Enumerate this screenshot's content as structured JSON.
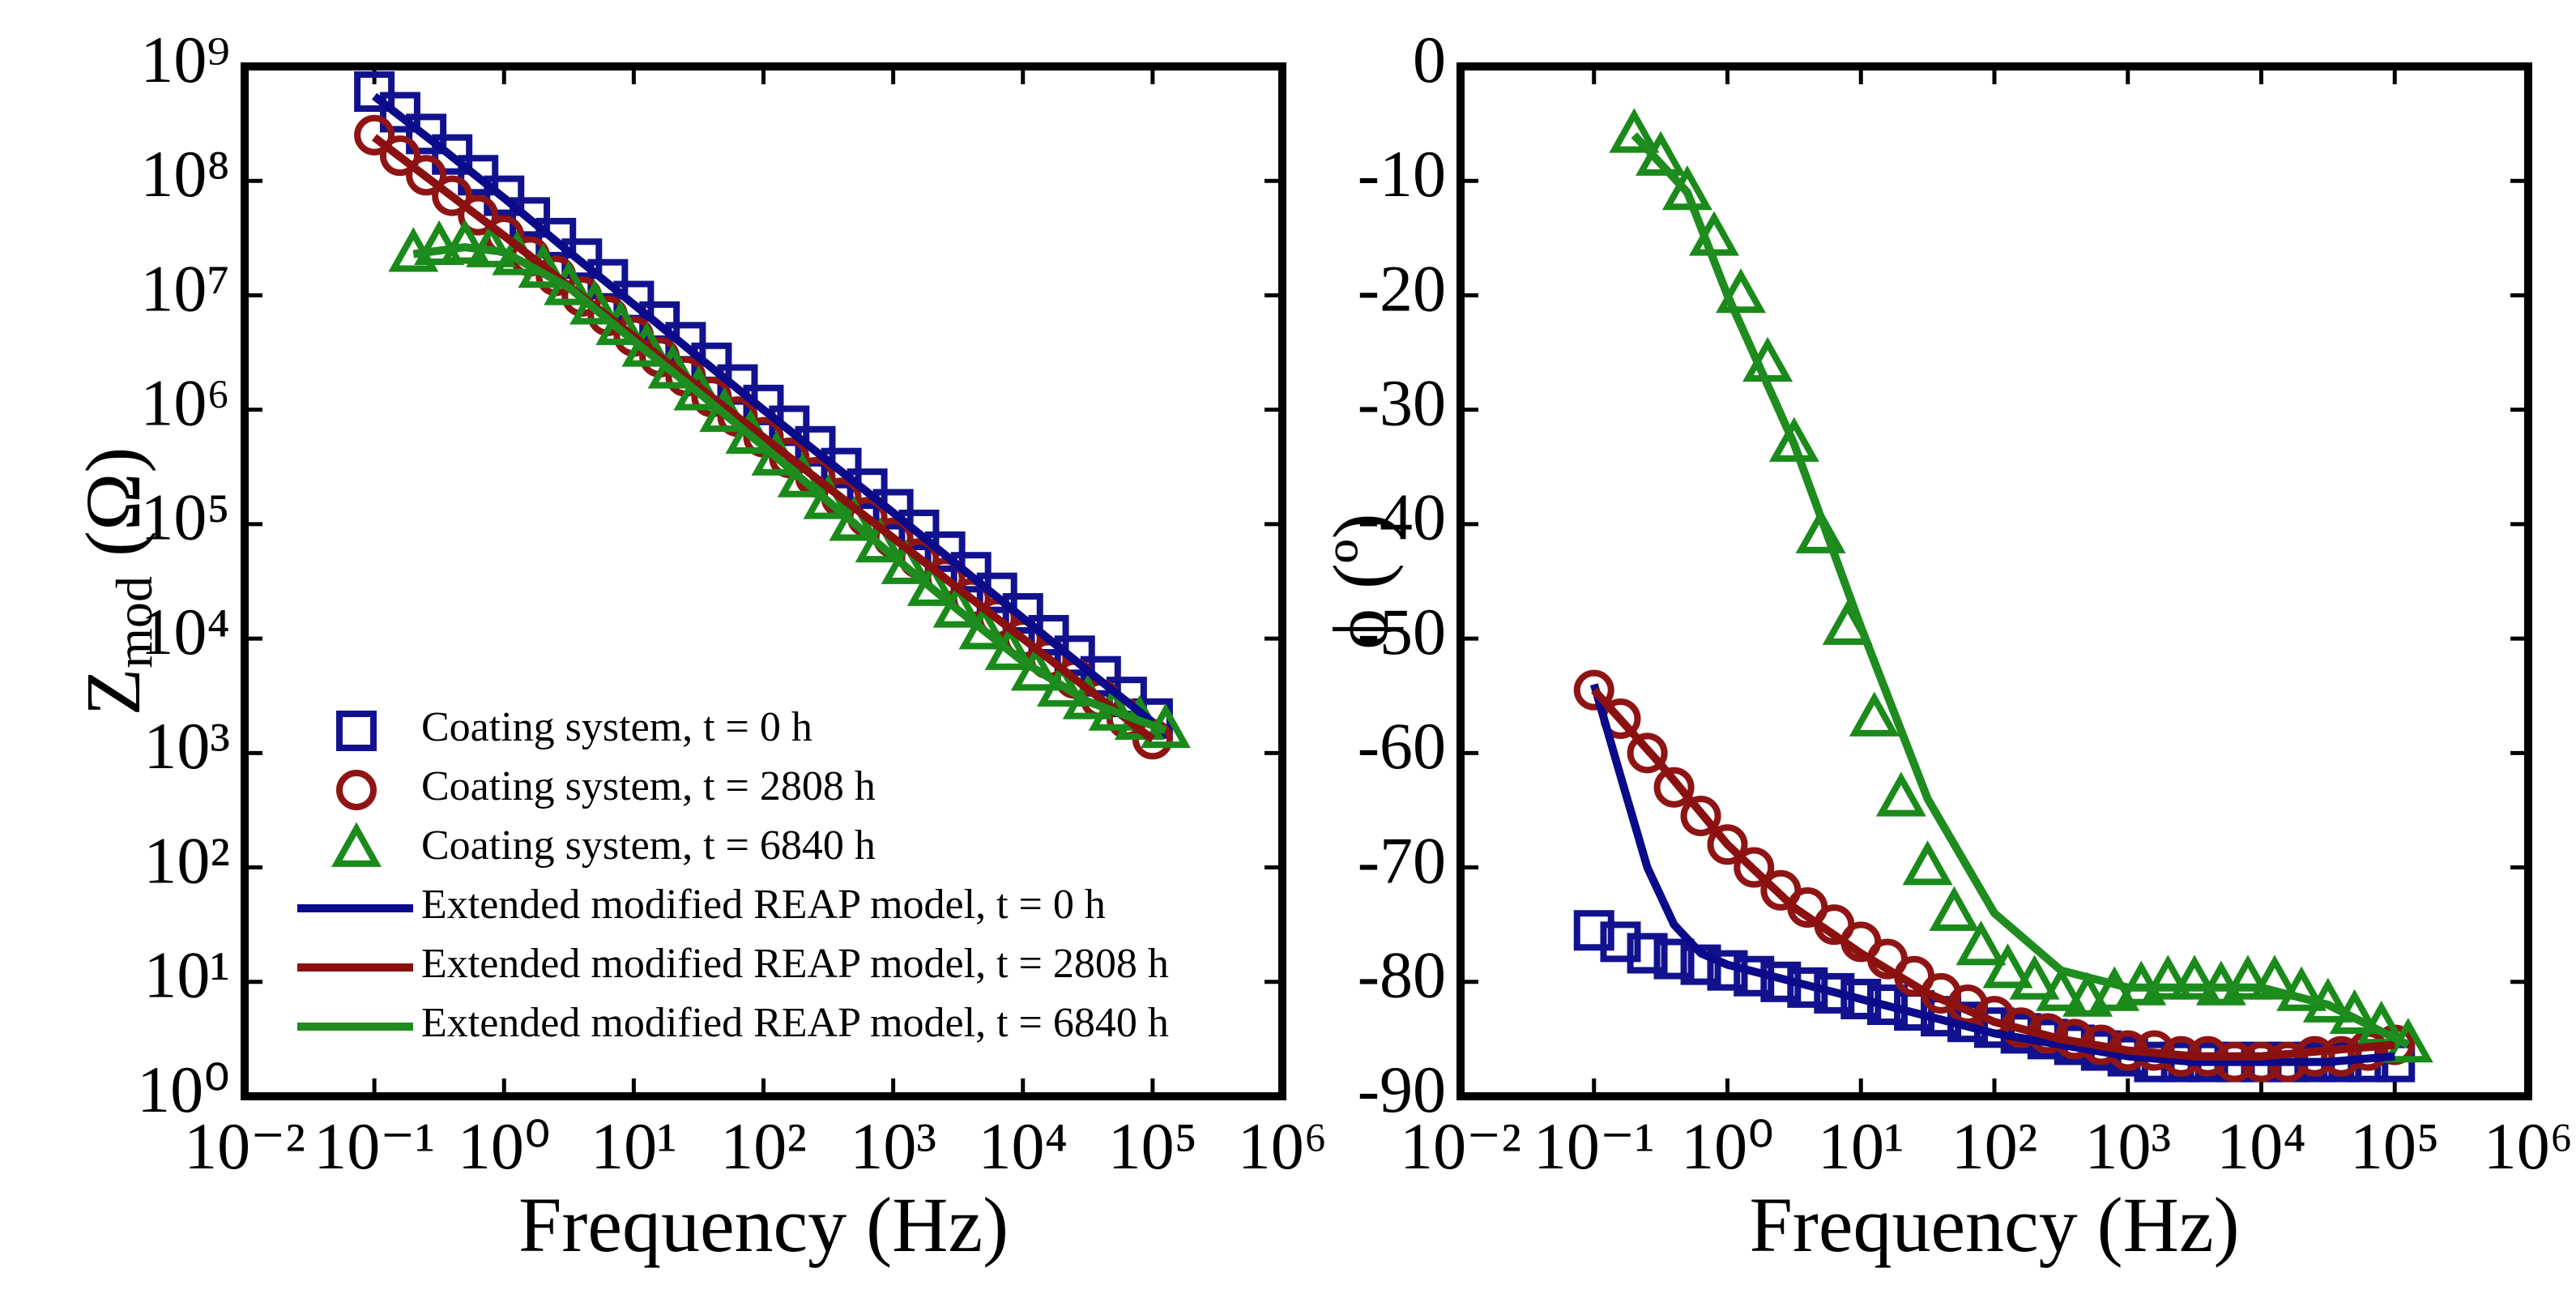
{
  "chart_data": [
    {
      "type": "scatter",
      "xlabel": "Frequency (Hz)",
      "ylabel": [
        "Z",
        "mod",
        " (Ω)"
      ],
      "xscale": "log",
      "yscale": "log",
      "legend": "lower left",
      "xlim": [
        0.01,
        1000000
      ],
      "ylim": [
        1,
        1000000000
      ],
      "xticks": [
        {
          "value": 0.01,
          "label": "10⁻²"
        },
        {
          "value": 0.1,
          "label": "10⁻¹"
        },
        {
          "value": 1,
          "label": "10⁰"
        },
        {
          "value": 10,
          "label": "10¹"
        },
        {
          "value": 100,
          "label": "10²"
        },
        {
          "value": 1000,
          "label": "10³"
        },
        {
          "value": 10000,
          "label": "10⁴"
        },
        {
          "value": 100000,
          "label": "10⁵"
        },
        {
          "value": 1000000,
          "label": "10⁶"
        }
      ],
      "yticks": [
        {
          "value": 1,
          "label": "10⁰"
        },
        {
          "value": 10,
          "label": "10¹"
        },
        {
          "value": 100,
          "label": "10²"
        },
        {
          "value": 1000,
          "label": "10³"
        },
        {
          "value": 10000,
          "label": "10⁴"
        },
        {
          "value": 100000,
          "label": "10⁵"
        },
        {
          "value": 1000000,
          "label": "10⁶"
        },
        {
          "value": 10000000,
          "label": "10⁷"
        },
        {
          "value": 100000000,
          "label": "10⁸"
        },
        {
          "value": 1000000000,
          "label": "10⁹"
        }
      ],
      "series": [
        {
          "name": "Coating system, t = 0 h",
          "color": "#12128f",
          "marker": "square",
          "x": [
            0.1,
            0.158,
            0.251,
            0.398,
            0.631,
            1,
            1.58,
            2.51,
            3.98,
            6.31,
            10,
            15.8,
            25.1,
            39.8,
            63.1,
            100,
            158,
            251,
            398,
            631,
            1000,
            1580,
            2510,
            3980,
            6310,
            10000,
            15800,
            25100,
            39800,
            63100,
            100000
          ],
          "values": [
            603000000.0,
            398000000.0,
            257000000.0,
            170000000.0,
            112000000.0,
            74100000.0,
            47900000.0,
            31600000.0,
            20900000.0,
            13800000.0,
            8910000.0,
            5890000.0,
            3890000.0,
            2570000.0,
            1660000.0,
            1100000.0,
            724000.0,
            479000.0,
            309000.0,
            204000.0,
            135000.0,
            89100.0,
            57500.0,
            38000.0,
            25100.0,
            16600.0,
            10700.0,
            7080.0,
            4680.0,
            3090.0,
            2000.0
          ]
        },
        {
          "name": "Coating system, t = 2808 h",
          "color": "#8f1414",
          "marker": "circle",
          "x": [
            0.1,
            0.158,
            0.251,
            0.398,
            0.631,
            1,
            1.58,
            2.51,
            3.98,
            6.31,
            10,
            15.8,
            25.1,
            39.8,
            63.1,
            100,
            158,
            251,
            398,
            631,
            1000,
            1580,
            2510,
            3980,
            6310,
            10000,
            15800,
            25100,
            39800,
            63100,
            100000
          ],
          "values": [
            251000000.0,
            166000000.0,
            112000000.0,
            74100000.0,
            50100000.0,
            33100000.0,
            21900000.0,
            14800000.0,
            9770000.0,
            6610000.0,
            4370000.0,
            2880000.0,
            1950000.0,
            1290000.0,
            871000.0,
            575000.0,
            380000.0,
            257000.0,
            170000.0,
            115000.0,
            75900.0,
            50100.0,
            33900.0,
            22400.0,
            15100.0,
            10000.0,
            6610.0,
            4470.0,
            2950.0,
            2000.0,
            1320.0
          ]
        },
        {
          "name": "Coating system, t = 6840 h",
          "color": "#1a8a1a",
          "marker": "triangle",
          "x": [
            0.2,
            0.316,
            0.5,
            0.794,
            1.26,
            2,
            3.16,
            5,
            7.94,
            12.6,
            20,
            31.6,
            50,
            79.4,
            126,
            200,
            316,
            500,
            794,
            1260,
            2000,
            3160,
            5000,
            7940,
            12600,
            20000,
            31600,
            50000,
            79400,
            126000
          ],
          "values": [
            22900000.0,
            26300000.0,
            26900000.0,
            25100000.0,
            21400000.0,
            16600000.0,
            11700000.0,
            7940000.0,
            5250000.0,
            3390000.0,
            2190000.0,
            1410000.0,
            912000.0,
            589000.0,
            380000.0,
            245000.0,
            158000.0,
            102000.0,
            66100.0,
            42700.0,
            27500.0,
            17800.0,
            11500.0,
            7590.0,
            5010.0,
            3630.0,
            2820.0,
            2240.0,
            1860.0,
            1580.0
          ]
        },
        {
          "name": "Extended modified REAP model, t = 0 h",
          "color": "#0a0a8a",
          "x": [
            0.1,
            0.316,
            1,
            3.16,
            10,
            31.6,
            100,
            316,
            1000,
            3160,
            10000,
            31600,
            100000
          ],
          "values": [
            550000000.0,
            200000000.0,
            70800000.0,
            24000000.0,
            8320000.0,
            2880000.0,
            1000000.0,
            355000.0,
            126000.0,
            43700.0,
            15100.0,
            5250.0,
            1860.0
          ]
        },
        {
          "name": "Extended modified REAP model, t = 2808 h",
          "color": "#8b1010",
          "x": [
            0.1,
            0.316,
            1,
            3.16,
            10,
            31.6,
            100,
            316,
            1000,
            3160,
            10000,
            31600,
            100000
          ],
          "values": [
            240000000.0,
            89100000.0,
            33100000.0,
            12000000.0,
            4370000.0,
            1580000.0,
            575000.0,
            209000.0,
            75900.0,
            27500.0,
            10000.0,
            3630.0,
            1320.0
          ]
        },
        {
          "name": "Extended modified REAP model, t = 6840 h",
          "color": "#1e8c1e",
          "x": [
            0.2,
            0.5,
            1,
            3.16,
            10,
            31.6,
            100,
            316,
            1000,
            3160,
            10000,
            31600,
            126000
          ],
          "values": [
            22900000.0,
            26300000.0,
            24000000.0,
            11700000.0,
            3980000.0,
            1410000.0,
            479000.0,
            158000.0,
            52500.0,
            17800.0,
            6310.0,
            2820.0,
            1580.0
          ]
        }
      ]
    },
    {
      "type": "scatter",
      "xlabel": "Frequency (Hz)",
      "ylabel": [
        "ϕ (º)"
      ],
      "xscale": "log",
      "yscale": "linear",
      "xlim": [
        0.01,
        1000000
      ],
      "ylim": [
        -90,
        0
      ],
      "xticks": [
        {
          "value": 0.01,
          "label": "10⁻²"
        },
        {
          "value": 0.1,
          "label": "10⁻¹"
        },
        {
          "value": 1,
          "label": "10⁰"
        },
        {
          "value": 10,
          "label": "10¹"
        },
        {
          "value": 100,
          "label": "10²"
        },
        {
          "value": 1000,
          "label": "10³"
        },
        {
          "value": 10000,
          "label": "10⁴"
        },
        {
          "value": 100000,
          "label": "10⁵"
        },
        {
          "value": 1000000,
          "label": "10⁶"
        }
      ],
      "yticks": [
        0,
        -10,
        -20,
        -30,
        -40,
        -50,
        -60,
        -70,
        -80,
        -90
      ],
      "series": [
        {
          "color": "#12128f",
          "marker": "square",
          "x": [
            0.1,
            0.158,
            0.251,
            0.398,
            0.631,
            1,
            1.58,
            2.51,
            3.98,
            6.31,
            10,
            15.8,
            25.1,
            39.8,
            63.1,
            100,
            158,
            251,
            398,
            631,
            1000,
            1580,
            2510,
            3980,
            6310,
            10000,
            15800,
            25100,
            39800,
            63100,
            100000
          ],
          "values": [
            -75.5,
            -76.5,
            -77.5,
            -78,
            -78.5,
            -79,
            -79.5,
            -80,
            -80.5,
            -81,
            -81.5,
            -82,
            -82.5,
            -83,
            -83.5,
            -84,
            -84.5,
            -85,
            -85.5,
            -86,
            -86.5,
            -87,
            -87,
            -87,
            -87,
            -87,
            -87,
            -87,
            -87,
            -87,
            -87
          ]
        },
        {
          "color": "#8f1414",
          "marker": "circle",
          "x": [
            0.1,
            0.158,
            0.251,
            0.398,
            0.631,
            1,
            1.58,
            2.51,
            3.98,
            6.31,
            10,
            15.8,
            25.1,
            39.8,
            63.1,
            100,
            158,
            251,
            398,
            631,
            1000,
            1580,
            2510,
            3980,
            6310,
            10000,
            15800,
            25100,
            39800,
            63100,
            100000
          ],
          "values": [
            -54.5,
            -57,
            -60,
            -63,
            -65.5,
            -68,
            -70,
            -72,
            -73.5,
            -75,
            -76.5,
            -78,
            -79.5,
            -81,
            -82,
            -83,
            -84,
            -84.5,
            -85,
            -85.5,
            -86,
            -86,
            -86.5,
            -86.5,
            -87,
            -87,
            -87,
            -86.5,
            -86.5,
            -86,
            -85.5
          ]
        },
        {
          "color": "#1a8a1a",
          "marker": "triangle",
          "x": [
            0.2,
            0.316,
            0.5,
            0.794,
            1.26,
            2,
            3.16,
            5,
            7.94,
            12.6,
            20,
            31.6,
            50,
            79.4,
            126,
            200,
            316,
            500,
            794,
            1260,
            2000,
            3160,
            5000,
            7940,
            12600,
            20000,
            31600,
            50000,
            79400,
            126000
          ],
          "values": [
            -6,
            -8,
            -11,
            -15,
            -20,
            -26,
            -33,
            -41,
            -49,
            -57,
            -64,
            -70,
            -74,
            -77,
            -79,
            -80,
            -81,
            -81.5,
            -81,
            -80.5,
            -80,
            -80,
            -80.5,
            -80,
            -80,
            -81,
            -82,
            -83,
            -84,
            -85.5
          ]
        },
        {
          "color": "#0a0a8a",
          "x": [
            0.1,
            0.158,
            0.251,
            0.398,
            0.631,
            1,
            3.16,
            10,
            31.6,
            100,
            316,
            1000,
            3160,
            10000,
            31600,
            100000
          ],
          "values": [
            -54,
            -62,
            -70,
            -75,
            -77.5,
            -78.5,
            -80,
            -81.5,
            -83,
            -84.5,
            -85.5,
            -86.5,
            -87,
            -87,
            -87,
            -86.5
          ]
        },
        {
          "color": "#8b1010",
          "x": [
            0.1,
            0.316,
            1,
            3.16,
            10,
            31.6,
            100,
            316,
            1000,
            3160,
            10000,
            31600,
            100000
          ],
          "values": [
            -54.5,
            -61,
            -68,
            -73.5,
            -77.5,
            -81,
            -83.5,
            -85,
            -86,
            -86.5,
            -86.5,
            -86,
            -85.5
          ]
        },
        {
          "color": "#1e8c1e",
          "x": [
            0.2,
            0.5,
            1,
            3.16,
            10,
            31.6,
            100,
            316,
            1000,
            3160,
            10000,
            31600,
            126000
          ],
          "values": [
            -6,
            -11,
            -20,
            -33,
            -49,
            -64,
            -74,
            -79,
            -80.5,
            -80.5,
            -80.5,
            -82,
            -85.5
          ]
        }
      ]
    }
  ]
}
